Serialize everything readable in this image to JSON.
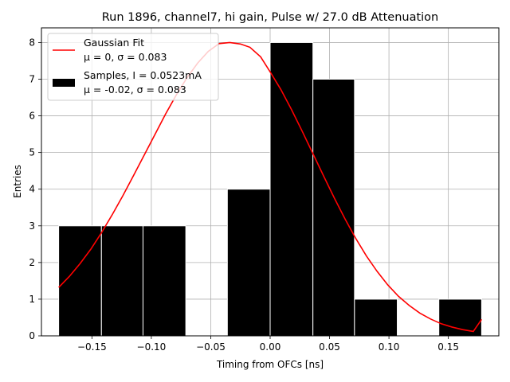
{
  "chart_data": {
    "type": "bar",
    "title": "Run 1896, channel7, hi gain, Pulse w/ 27.0 dB Attenuation",
    "xlabel": "Timing from OFCs [ns]",
    "ylabel": "Entries",
    "xlim": [
      -0.1925,
      0.1925
    ],
    "ylim": [
      0,
      8.4
    ],
    "xticks": [
      -0.15,
      -0.1,
      -0.05,
      0.0,
      0.05,
      0.1,
      0.15
    ],
    "xtick_labels": [
      "−0.15",
      "−0.10",
      "−0.05",
      "0.00",
      "0.05",
      "0.10",
      "0.15"
    ],
    "yticks": [
      0,
      1,
      2,
      3,
      4,
      5,
      6,
      7,
      8
    ],
    "ytick_labels": [
      "0",
      "1",
      "2",
      "3",
      "4",
      "5",
      "6",
      "7",
      "8"
    ],
    "grid": true,
    "legend_position": "top-left",
    "histogram": {
      "name": "Samples, I = 0.0523mA",
      "stats": "μ = -0.02, σ = 0.083",
      "color": "#000000",
      "bin_edges": [
        -0.178,
        -0.142,
        -0.107,
        -0.071,
        -0.036,
        0.0,
        0.036,
        0.071,
        0.107,
        0.142,
        0.178
      ],
      "values": [
        3,
        3,
        3,
        0,
        4,
        8,
        7,
        1,
        0,
        1
      ]
    },
    "fit": {
      "name": "Gaussian Fit",
      "stats": "μ = 0, σ = 0.083",
      "color": "#ff0000",
      "x": [
        -0.178,
        -0.169,
        -0.16,
        -0.151,
        -0.142,
        -0.133,
        -0.124,
        -0.115,
        -0.106,
        -0.097,
        -0.088,
        -0.079,
        -0.07,
        -0.061,
        -0.052,
        -0.043,
        -0.034,
        -0.025,
        -0.017,
        -0.008,
        0.0,
        0.009,
        0.018,
        0.027,
        0.036,
        0.045,
        0.054,
        0.063,
        0.072,
        0.081,
        0.09,
        0.099,
        0.108,
        0.117,
        0.126,
        0.135,
        0.144,
        0.153,
        0.162,
        0.171,
        0.178
      ],
      "y": [
        1.32,
        1.62,
        1.97,
        2.36,
        2.81,
        3.3,
        3.82,
        4.37,
        4.93,
        5.49,
        6.05,
        6.57,
        7.04,
        7.44,
        7.76,
        7.97,
        8.0,
        7.96,
        7.87,
        7.61,
        7.2,
        6.72,
        6.17,
        5.58,
        4.97,
        4.36,
        3.76,
        3.19,
        2.66,
        2.18,
        1.76,
        1.39,
        1.08,
        0.83,
        0.62,
        0.46,
        0.33,
        0.24,
        0.17,
        0.12,
        0.45
      ]
    }
  }
}
